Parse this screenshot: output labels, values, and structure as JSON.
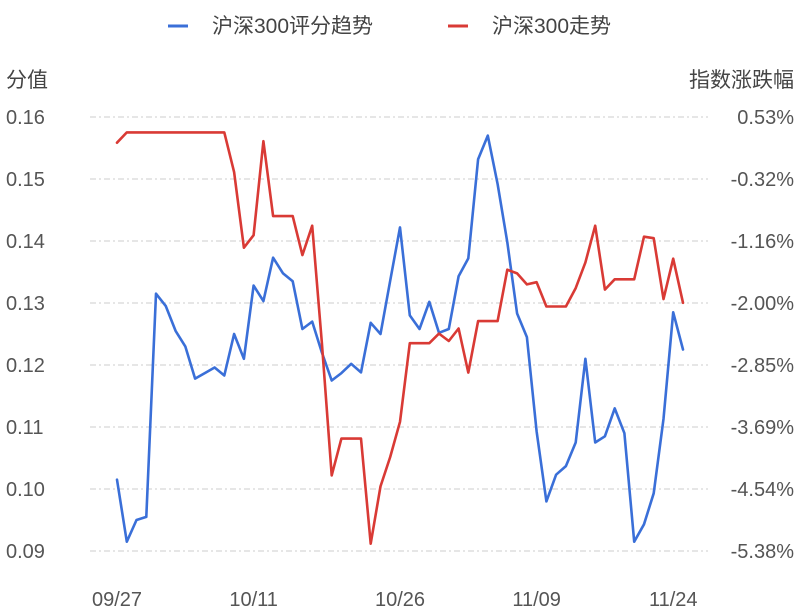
{
  "chart_data": {
    "type": "line",
    "legend_position": "top",
    "grid": true,
    "y_left": {
      "label": "分值",
      "ticks": [
        "0.16",
        "0.15",
        "0.14",
        "0.13",
        "0.12",
        "0.11",
        "0.10",
        "0.09"
      ],
      "min": 0.09,
      "max": 0.16
    },
    "y_right": {
      "label": "指数涨跌幅",
      "ticks": [
        "0.53%",
        "-0.32%",
        "-1.16%",
        "-2.00%",
        "-2.85%",
        "-3.69%",
        "-4.54%",
        "-5.38%"
      ],
      "min": -5.38,
      "max": 0.53
    },
    "x_tick_labels": [
      "09/27",
      "10/11",
      "10/26",
      "11/09",
      "11/24"
    ],
    "x_tick_indices": [
      0,
      14,
      29,
      43,
      57
    ],
    "series": [
      {
        "name": "沪深300评分趋势",
        "axis": "left",
        "color": "#3a6fd8",
        "values": [
          0.1015,
          0.0915,
          0.095,
          0.0955,
          0.1315,
          0.1295,
          0.1255,
          0.123,
          0.1178,
          0.1187,
          0.1196,
          0.1183,
          0.125,
          0.121,
          0.1328,
          0.1303,
          0.1373,
          0.1348,
          0.1335,
          0.1258,
          0.127,
          0.122,
          0.1175,
          0.1187,
          0.1202,
          0.1188,
          0.1268,
          0.125,
          0.1336,
          0.1422,
          0.128,
          0.1258,
          0.1302,
          0.1252,
          0.1258,
          0.1343,
          0.1372,
          0.1532,
          0.157,
          0.1492,
          0.1398,
          0.1283,
          0.1245,
          0.1093,
          0.098,
          0.1023,
          0.1037,
          0.1075,
          0.121,
          0.1075,
          0.1085,
          0.113,
          0.109,
          0.0915,
          0.0943,
          0.0993,
          0.1113,
          0.1285,
          0.1225
        ]
      },
      {
        "name": "沪深300走势",
        "axis": "right",
        "color": "#d93a35",
        "values": [
          0.18,
          0.32,
          0.32,
          0.32,
          0.32,
          0.32,
          0.32,
          0.32,
          0.32,
          0.32,
          0.32,
          0.32,
          -0.22,
          -1.25,
          -1.08,
          0.2,
          -0.82,
          -0.82,
          -0.82,
          -1.35,
          -0.95,
          -2.55,
          -4.35,
          -3.85,
          -3.85,
          -3.85,
          -5.28,
          -4.5,
          -4.1,
          -3.62,
          -2.55,
          -2.55,
          -2.55,
          -2.42,
          -2.52,
          -2.35,
          -2.95,
          -2.25,
          -2.25,
          -2.25,
          -1.55,
          -1.6,
          -1.75,
          -1.72,
          -2.05,
          -2.05,
          -2.05,
          -1.8,
          -1.45,
          -0.95,
          -1.82,
          -1.68,
          -1.68,
          -1.68,
          -1.1,
          -1.12,
          -1.95,
          -1.4,
          -2.0
        ]
      }
    ]
  }
}
